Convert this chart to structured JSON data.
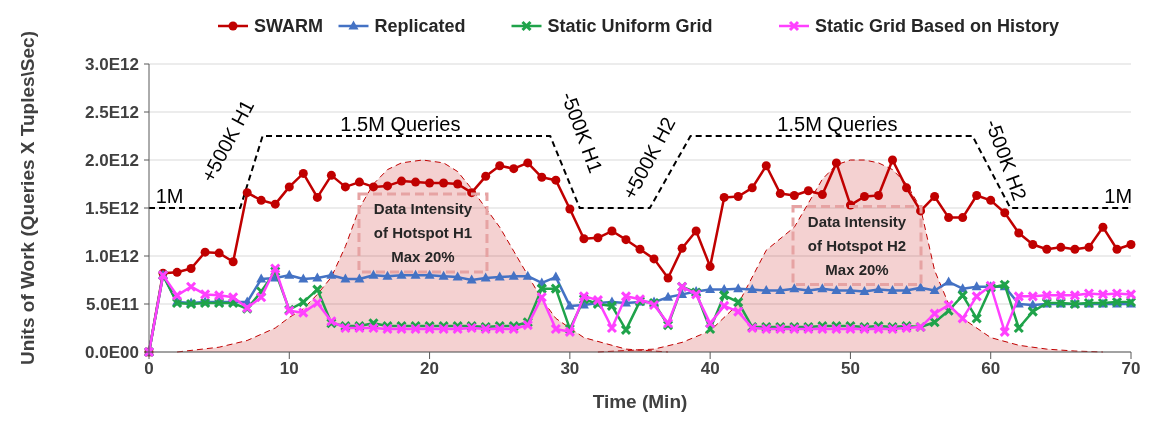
{
  "chart_data": {
    "type": "line",
    "xlabel": "Time (Min)",
    "ylabel": "Units of Work (Queries X Tuples\\Sec)",
    "x": [
      0,
      1,
      2,
      3,
      4,
      5,
      6,
      7,
      8,
      9,
      10,
      11,
      12,
      13,
      14,
      15,
      16,
      17,
      18,
      19,
      20,
      21,
      22,
      23,
      24,
      25,
      26,
      27,
      28,
      29,
      30,
      31,
      32,
      33,
      34,
      35,
      36,
      37,
      38,
      39,
      40,
      41,
      42,
      43,
      44,
      45,
      46,
      47,
      48,
      49,
      50,
      51,
      52,
      53,
      54,
      55,
      56,
      57,
      58,
      59,
      60,
      61,
      62,
      63,
      64,
      65,
      66,
      67,
      68,
      69,
      70
    ],
    "xlim": [
      0,
      70
    ],
    "xticks": [
      0,
      10,
      20,
      30,
      40,
      50,
      60,
      70
    ],
    "ylim": [
      0,
      3000000000000.0
    ],
    "yticks": [
      {
        "value": 0,
        "label": "0.0E00"
      },
      {
        "value": 500000000000.0,
        "label": "5.0E11"
      },
      {
        "value": 1000000000000.0,
        "label": "1.0E12"
      },
      {
        "value": 1500000000000.0,
        "label": "1.5E12"
      },
      {
        "value": 2000000000000.0,
        "label": "2.0E12"
      },
      {
        "value": 2500000000000.0,
        "label": "2.5E12"
      },
      {
        "value": 3000000000000.0,
        "label": "3.0E12"
      }
    ],
    "grid": "y",
    "legend": "top",
    "series": [
      {
        "type": "area",
        "color": "#c00000",
        "line_style": "dashed",
        "x": [
          2,
          5,
          7,
          9,
          10,
          11,
          12,
          13,
          14,
          15,
          16,
          17,
          18,
          19.5,
          21,
          22,
          23,
          24,
          25,
          26,
          27,
          28,
          29,
          31,
          34,
          37
        ],
        "values": [
          0,
          50000000000.0,
          120000000000.0,
          250000000000.0,
          360000000000.0,
          450000000000.0,
          600000000000.0,
          780000000000.0,
          1100000000000.0,
          1500000000000.0,
          1750000000000.0,
          1900000000000.0,
          1970000000000.0,
          2000000000000.0,
          1970000000000.0,
          1880000000000.0,
          1700000000000.0,
          1500000000000.0,
          1300000000000.0,
          1050000000000.0,
          800000000000.0,
          550000000000.0,
          350000000000.0,
          150000000000.0,
          30000000000.0,
          0
        ]
      },
      {
        "type": "area",
        "color": "#c00000",
        "line_style": "dashed",
        "x": [
          32,
          36,
          38,
          40,
          42,
          44,
          46,
          47,
          48,
          49,
          50,
          51,
          52,
          53,
          54,
          55,
          56,
          57,
          58,
          60,
          62,
          64,
          66,
          68
        ],
        "values": [
          0,
          30000000000.0,
          100000000000.0,
          220000000000.0,
          500000000000.0,
          1060000000000.0,
          1300000000000.0,
          1550000000000.0,
          1800000000000.0,
          1950000000000.0,
          2000000000000.0,
          2000000000000.0,
          1970000000000.0,
          1900000000000.0,
          1750000000000.0,
          1500000000000.0,
          850000000000.0,
          500000000000.0,
          350000000000.0,
          150000000000.0,
          70000000000.0,
          30000000000.0,
          10000000000.0,
          0
        ]
      },
      {
        "type": "line",
        "color": "#000000",
        "line_style": "dashed",
        "marker": "none",
        "x": [
          0,
          6.5,
          8.1,
          28.6,
          30.7,
          35.7,
          38.6,
          58.7,
          61.4,
          70
        ],
        "values": [
          1500000000000.0,
          1500000000000.0,
          2250000000000.0,
          2250000000000.0,
          1500000000000.0,
          1500000000000.0,
          2250000000000.0,
          2250000000000.0,
          1500000000000.0,
          1500000000000.0
        ]
      },
      {
        "name": "SWARM",
        "color": "#c00000",
        "marker": "circle",
        "values": [
          0,
          820000000000.0,
          830000000000.0,
          870000000000.0,
          1040000000000.0,
          1030000000000.0,
          940000000000.0,
          1660000000000.0,
          1580000000000.0,
          1540000000000.0,
          1720000000000.0,
          1860000000000.0,
          1610000000000.0,
          1840000000000.0,
          1720000000000.0,
          1770000000000.0,
          1720000000000.0,
          1730000000000.0,
          1780000000000.0,
          1770000000000.0,
          1760000000000.0,
          1760000000000.0,
          1750000000000.0,
          1660000000000.0,
          1830000000000.0,
          1940000000000.0,
          1910000000000.0,
          1970000000000.0,
          1820000000000.0,
          1790000000000.0,
          1490000000000.0,
          1180000000000.0,
          1190000000000.0,
          1260000000000.0,
          1170000000000.0,
          1070000000000.0,
          970000000000.0,
          770000000000.0,
          1080000000000.0,
          1260000000000.0,
          890000000000.0,
          1610000000000.0,
          1620000000000.0,
          1710000000000.0,
          1940000000000.0,
          1650000000000.0,
          1630000000000.0,
          1680000000000.0,
          1640000000000.0,
          1970000000000.0,
          1530000000000.0,
          1620000000000.0,
          1630000000000.0,
          2000000000000.0,
          1710000000000.0,
          1470000000000.0,
          1620000000000.0,
          1400000000000.0,
          1400000000000.0,
          1630000000000.0,
          1580000000000.0,
          1450000000000.0,
          1240000000000.0,
          1120000000000.0,
          1070000000000.0,
          1090000000000.0,
          1070000000000.0,
          1090000000000.0,
          1300000000000.0,
          1070000000000.0,
          1120000000000.0
        ]
      },
      {
        "name": "Replicated",
        "color": "#4472c4",
        "marker": "triangle",
        "values": [
          0,
          800000000000.0,
          520000000000.0,
          510000000000.0,
          520000000000.0,
          520000000000.0,
          520000000000.0,
          520000000000.0,
          760000000000.0,
          770000000000.0,
          800000000000.0,
          760000000000.0,
          770000000000.0,
          800000000000.0,
          760000000000.0,
          760000000000.0,
          800000000000.0,
          790000000000.0,
          800000000000.0,
          800000000000.0,
          800000000000.0,
          790000000000.0,
          780000000000.0,
          750000000000.0,
          770000000000.0,
          780000000000.0,
          790000000000.0,
          790000000000.0,
          720000000000.0,
          780000000000.0,
          480000000000.0,
          490000000000.0,
          510000000000.0,
          520000000000.0,
          510000000000.0,
          520000000000.0,
          520000000000.0,
          570000000000.0,
          600000000000.0,
          630000000000.0,
          650000000000.0,
          650000000000.0,
          660000000000.0,
          650000000000.0,
          640000000000.0,
          640000000000.0,
          660000000000.0,
          640000000000.0,
          660000000000.0,
          640000000000.0,
          640000000000.0,
          630000000000.0,
          650000000000.0,
          640000000000.0,
          640000000000.0,
          670000000000.0,
          640000000000.0,
          730000000000.0,
          660000000000.0,
          680000000000.0,
          680000000000.0,
          680000000000.0,
          500000000000.0,
          490000000000.0,
          500000000000.0,
          500000000000.0,
          500000000000.0,
          500000000000.0,
          500000000000.0,
          500000000000.0,
          500000000000.0
        ]
      },
      {
        "name": "Static Uniform Grid",
        "color": "#1fa34a",
        "marker": "cross",
        "values": [
          0,
          800000000000.0,
          510000000000.0,
          500000000000.0,
          510000000000.0,
          510000000000.0,
          510000000000.0,
          450000000000.0,
          630000000000.0,
          840000000000.0,
          440000000000.0,
          520000000000.0,
          650000000000.0,
          300000000000.0,
          270000000000.0,
          270000000000.0,
          300000000000.0,
          270000000000.0,
          270000000000.0,
          270000000000.0,
          270000000000.0,
          270000000000.0,
          270000000000.0,
          270000000000.0,
          260000000000.0,
          270000000000.0,
          270000000000.0,
          310000000000.0,
          660000000000.0,
          660000000000.0,
          240000000000.0,
          550000000000.0,
          500000000000.0,
          480000000000.0,
          230000000000.0,
          530000000000.0,
          510000000000.0,
          280000000000.0,
          680000000000.0,
          620000000000.0,
          240000000000.0,
          590000000000.0,
          520000000000.0,
          260000000000.0,
          260000000000.0,
          260000000000.0,
          260000000000.0,
          260000000000.0,
          270000000000.0,
          270000000000.0,
          270000000000.0,
          260000000000.0,
          270000000000.0,
          260000000000.0,
          270000000000.0,
          260000000000.0,
          310000000000.0,
          430000000000.0,
          590000000000.0,
          350000000000.0,
          670000000000.0,
          700000000000.0,
          250000000000.0,
          420000000000.0,
          510000000000.0,
          510000000000.0,
          500000000000.0,
          510000000000.0,
          510000000000.0,
          520000000000.0,
          520000000000.0
        ]
      },
      {
        "name": "Static Grid Based on History",
        "color": "#ff40ff",
        "marker": "cross",
        "values": [
          0,
          800000000000.0,
          590000000000.0,
          680000000000.0,
          600000000000.0,
          590000000000.0,
          570000000000.0,
          460000000000.0,
          570000000000.0,
          870000000000.0,
          430000000000.0,
          410000000000.0,
          510000000000.0,
          320000000000.0,
          250000000000.0,
          250000000000.0,
          250000000000.0,
          240000000000.0,
          240000000000.0,
          240000000000.0,
          240000000000.0,
          240000000000.0,
          240000000000.0,
          250000000000.0,
          240000000000.0,
          240000000000.0,
          240000000000.0,
          280000000000.0,
          570000000000.0,
          240000000000.0,
          210000000000.0,
          580000000000.0,
          540000000000.0,
          250000000000.0,
          580000000000.0,
          550000000000.0,
          490000000000.0,
          300000000000.0,
          680000000000.0,
          600000000000.0,
          300000000000.0,
          480000000000.0,
          420000000000.0,
          250000000000.0,
          240000000000.0,
          240000000000.0,
          240000000000.0,
          240000000000.0,
          240000000000.0,
          240000000000.0,
          240000000000.0,
          240000000000.0,
          240000000000.0,
          240000000000.0,
          250000000000.0,
          260000000000.0,
          400000000000.0,
          490000000000.0,
          350000000000.0,
          580000000000.0,
          690000000000.0,
          210000000000.0,
          580000000000.0,
          580000000000.0,
          590000000000.0,
          590000000000.0,
          590000000000.0,
          610000000000.0,
          600000000000.0,
          610000000000.0,
          600000000000.0
        ]
      }
    ],
    "annotations": [
      "1M",
      "+500K H1",
      "1.5M Queries",
      "-500K H1",
      "+500K H2",
      "1.5M Queries",
      "-500K H2",
      "1M",
      "Data Intensity\nof Hotspot  H1\nMax 20%",
      "Data Intensity\nof Hotspot H2\nMax 20%"
    ]
  }
}
